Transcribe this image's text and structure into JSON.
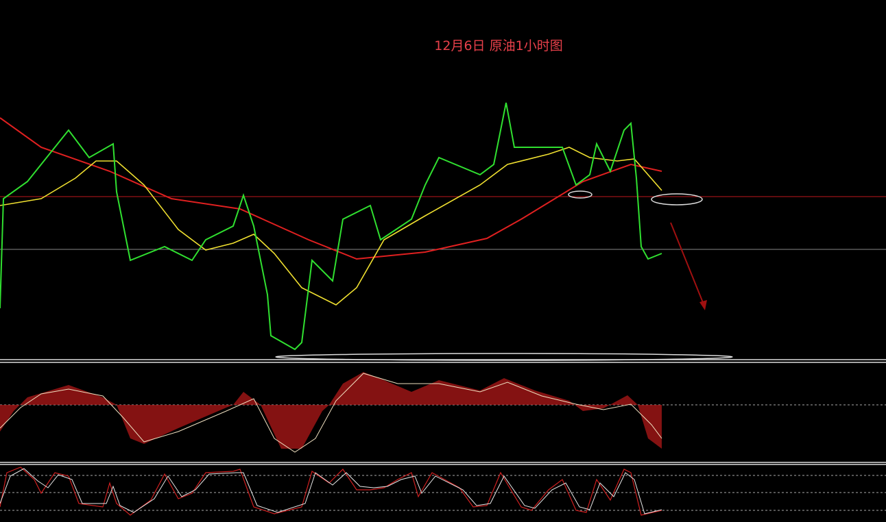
{
  "header": {
    "title": "12月6日 原油1小时图"
  }
}
